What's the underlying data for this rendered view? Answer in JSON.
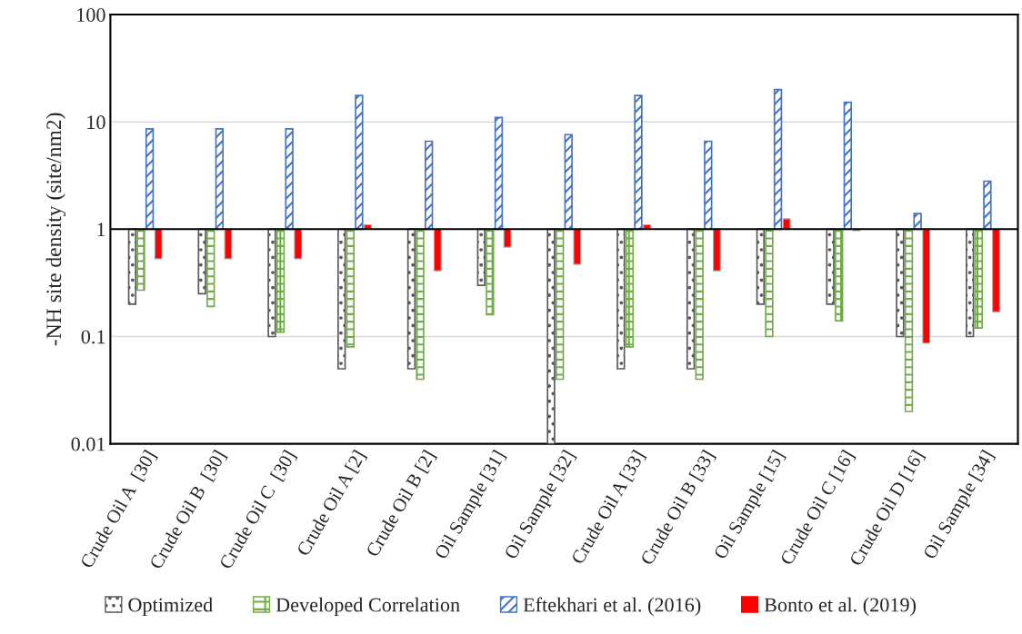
{
  "chart_data": {
    "type": "bar",
    "ylabel": "-NH site density (site/nm2)",
    "categories": [
      "Crude Oil A  [30]",
      "Crude Oil B  [30]",
      "Crude Oil C  [30]",
      "Crude Oil A [2]",
      "Crude Oil B [2]",
      "Oil Sample [31]",
      "Oil Sample [32]",
      "Crude Oil A [33]",
      "Crude Oil B [33]",
      "Oil Sample [15]",
      "Crude Oil C [16]",
      "Crude Oil D [16]",
      "Oil Sample [34]"
    ],
    "series": [
      {
        "name": "Optimized",
        "color": "#595959",
        "base": [
          1,
          1,
          1,
          1,
          1,
          1,
          1,
          1,
          1,
          1,
          1,
          1,
          1
        ],
        "values": [
          -0.8,
          -0.75,
          -0.9,
          -0.95,
          -0.95,
          -0.7,
          -0.99,
          -0.95,
          -0.95,
          -0.8,
          -0.8,
          -0.9,
          -0.9
        ]
      },
      {
        "name": "Developed Correlation",
        "color": "#70ad47",
        "base": [
          1,
          1,
          1,
          1,
          1,
          1,
          1,
          1,
          1,
          1,
          1,
          1,
          1
        ],
        "values": [
          -0.73,
          -0.81,
          -0.89,
          -0.92,
          -0.96,
          -0.84,
          -0.96,
          -0.92,
          -0.96,
          -0.9,
          -0.86,
          -0.98,
          -0.88
        ]
      },
      {
        "name": "Eftekhari et al. (2016)",
        "color": "#4472c4",
        "base": [
          1,
          1,
          1,
          1,
          1,
          1,
          1,
          1,
          1,
          1,
          1,
          1,
          1
        ],
        "values": [
          7.6,
          7.6,
          7.6,
          16.6,
          5.6,
          10,
          6.6,
          16.6,
          5.6,
          19,
          14.2,
          0.4,
          1.8
        ]
      },
      {
        "name": "Bonto et al. (2019)",
        "color": "#ff0000",
        "base": [
          1,
          1,
          1,
          1,
          1,
          1,
          1,
          1,
          1,
          1,
          1,
          1,
          1
        ],
        "values": [
          -0.47,
          -0.47,
          -0.47,
          0.1,
          -0.59,
          -0.32,
          -0.53,
          0.1,
          -0.59,
          0.25,
          -0.03,
          -0.913,
          -0.83
        ]
      }
    ],
    "log": true,
    "ylim": [
      0.01,
      100
    ],
    "yticks": [
      0.01,
      0.1,
      1,
      10,
      100
    ],
    "ref_lines": [
      {
        "axis": "y",
        "value": 1,
        "color": "#000000"
      }
    ],
    "grid": "y",
    "legend": "bottom"
  }
}
